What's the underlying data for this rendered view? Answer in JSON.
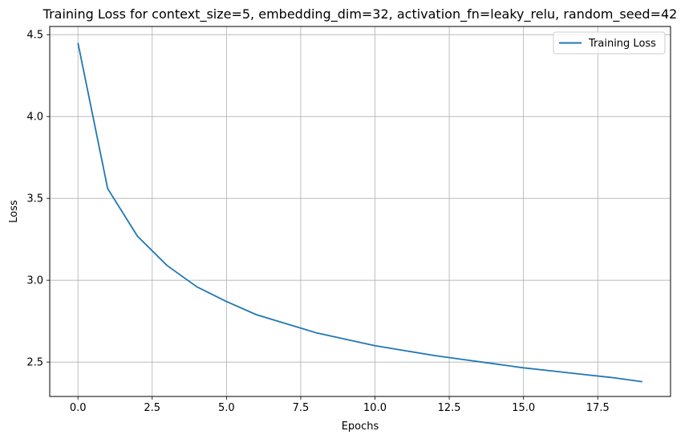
{
  "chart_data": {
    "type": "line",
    "title": "Training Loss for context_size=5, embedding_dim=32, activation_fn=leaky_relu, random_seed=42",
    "xlabel": "Epochs",
    "ylabel": "Loss",
    "xlim": [
      -0.95,
      19.95
    ],
    "ylim": [
      2.29,
      4.55
    ],
    "xticks": [
      0,
      2.5,
      5,
      7.5,
      10,
      12.5,
      15,
      17.5
    ],
    "xtick_labels": [
      "0.0",
      "2.5",
      "5.0",
      "7.5",
      "10.0",
      "12.5",
      "15.0",
      "17.5"
    ],
    "yticks": [
      2.5,
      3.0,
      3.5,
      4.0,
      4.5
    ],
    "ytick_labels": [
      "2.5",
      "3.0",
      "3.5",
      "4.0",
      "4.5"
    ],
    "grid": true,
    "legend_position": "top-right",
    "series": [
      {
        "name": "Training Loss",
        "color": "#1f77b4",
        "x": [
          0,
          1,
          2,
          3,
          4,
          5,
          6,
          7,
          8,
          9,
          10,
          11,
          12,
          13,
          14,
          15,
          16,
          17,
          18,
          19
        ],
        "y": [
          4.45,
          3.56,
          3.27,
          3.09,
          2.96,
          2.87,
          2.79,
          2.735,
          2.68,
          2.64,
          2.6,
          2.57,
          2.54,
          2.515,
          2.49,
          2.465,
          2.445,
          2.425,
          2.405,
          2.38
        ]
      }
    ]
  }
}
